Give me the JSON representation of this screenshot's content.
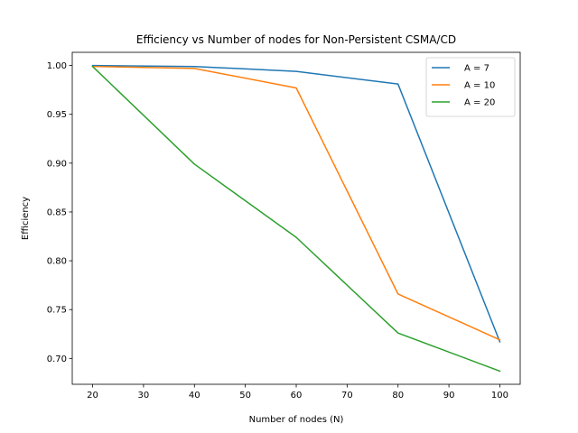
{
  "chart_data": {
    "type": "line",
    "title": "Efficiency vs Number of nodes for Non-Persistent CSMA/CD",
    "xlabel": "Number of nodes (N)",
    "ylabel": "Efficiency",
    "x": [
      20,
      40,
      60,
      80,
      100
    ],
    "xlim": [
      16,
      104
    ],
    "ylim": [
      0.6735,
      1.0135
    ],
    "xticks": [
      20,
      30,
      40,
      50,
      60,
      70,
      80,
      90,
      100
    ],
    "yticks": [
      "0.70",
      "0.75",
      "0.80",
      "0.85",
      "0.90",
      "0.95",
      "1.00"
    ],
    "grid": false,
    "legend_position": "top-right",
    "series": [
      {
        "name": "A = 7",
        "color": "#1f77b4",
        "values": [
          1.0,
          0.999,
          0.994,
          0.981,
          0.717
        ]
      },
      {
        "name": "A = 10",
        "color": "#ff7f0e",
        "values": [
          0.999,
          0.997,
          0.977,
          0.766,
          0.719
        ]
      },
      {
        "name": "A = 20",
        "color": "#2ca02c",
        "values": [
          0.999,
          0.899,
          0.824,
          0.726,
          0.687
        ]
      }
    ]
  }
}
